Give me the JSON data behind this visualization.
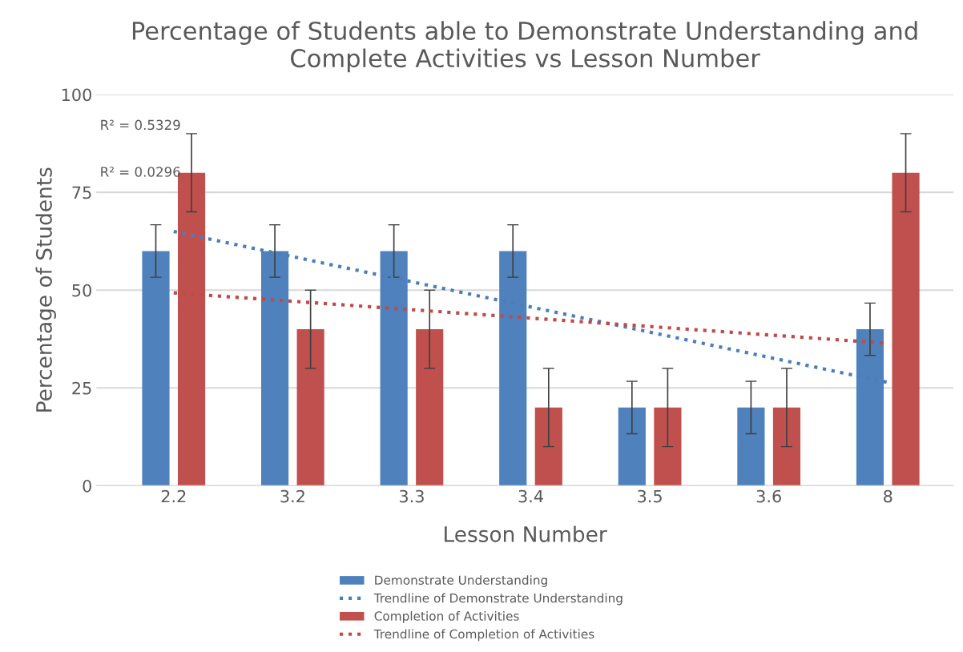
{
  "chart_data": {
    "type": "bar",
    "title": "Percentage of Students able to Demonstrate Understanding and Complete Activities vs Lesson Number",
    "xlabel": "Lesson Number",
    "ylabel": "Percentage of Students",
    "categories": [
      "2.2",
      "3.2",
      "3.3",
      "3.4",
      "3.5",
      "3.6",
      "8"
    ],
    "series": [
      {
        "name": "Demonstrate Understanding",
        "color": "#4f81bd",
        "values": [
          60,
          60,
          60,
          60,
          20,
          20,
          40
        ],
        "errors": [
          6.7,
          6.7,
          6.7,
          6.7,
          6.7,
          6.7,
          6.7
        ]
      },
      {
        "name": "Trendline of Demonstrate Understanding",
        "type": "line",
        "color": "#4a7ebb",
        "line_style": "dotted",
        "x": [
          "2.2",
          "8"
        ],
        "values": [
          65,
          26.4
        ]
      },
      {
        "name": "Completion of Activities",
        "color": "#c0504d",
        "values": [
          80,
          40,
          40,
          20,
          20,
          20,
          80
        ],
        "errors": [
          10,
          10,
          10,
          10,
          10,
          10,
          10
        ]
      },
      {
        "name": "Trendline of Completion of Activities",
        "type": "line",
        "color": "#be4b48",
        "line_style": "dotted",
        "x": [
          "2.2",
          "8"
        ],
        "values": [
          49.3,
          36.4
        ]
      }
    ],
    "ylim": [
      0,
      100
    ],
    "yticks": [
      0,
      25,
      50,
      75,
      100
    ],
    "grid": "y",
    "legend": "bottom",
    "annotations": [
      "R² = 0.5329",
      "R² = 0.0296"
    ]
  }
}
